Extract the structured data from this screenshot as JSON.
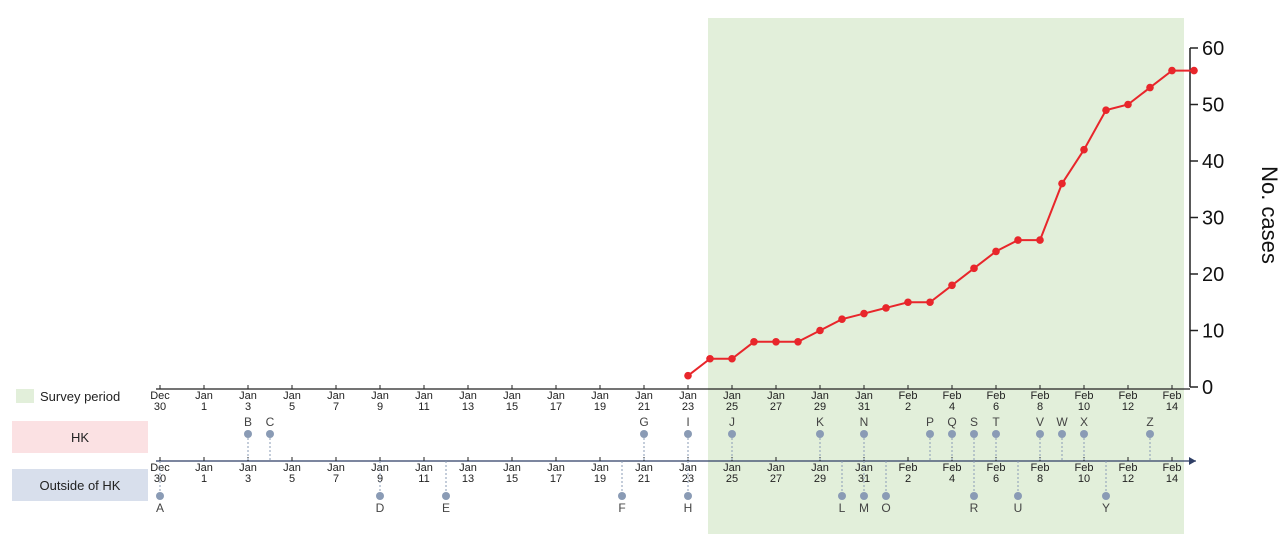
{
  "chart_data": {
    "type": "line",
    "x_axis": {
      "day_range": [
        "Dec 30",
        "Feb 15"
      ],
      "tick_labels": [
        {
          "month": "Dec",
          "day": "30"
        },
        {
          "month": "Jan",
          "day": "1"
        },
        {
          "month": "Jan",
          "day": "3"
        },
        {
          "month": "Jan",
          "day": "5"
        },
        {
          "month": "Jan",
          "day": "7"
        },
        {
          "month": "Jan",
          "day": "9"
        },
        {
          "month": "Jan",
          "day": "11"
        },
        {
          "month": "Jan",
          "day": "13"
        },
        {
          "month": "Jan",
          "day": "15"
        },
        {
          "month": "Jan",
          "day": "17"
        },
        {
          "month": "Jan",
          "day": "19"
        },
        {
          "month": "Jan",
          "day": "21"
        },
        {
          "month": "Jan",
          "day": "23"
        },
        {
          "month": "Jan",
          "day": "25"
        },
        {
          "month": "Jan",
          "day": "27"
        },
        {
          "month": "Jan",
          "day": "29"
        },
        {
          "month": "Jan",
          "day": "31"
        },
        {
          "month": "Feb",
          "day": "2"
        },
        {
          "month": "Feb",
          "day": "4"
        },
        {
          "month": "Feb",
          "day": "6"
        },
        {
          "month": "Feb",
          "day": "8"
        },
        {
          "month": "Feb",
          "day": "10"
        },
        {
          "month": "Feb",
          "day": "12"
        },
        {
          "month": "Feb",
          "day": "14"
        }
      ]
    },
    "y_axis": {
      "label": "No. cases",
      "range": [
        0,
        60
      ],
      "ticks": [
        0,
        10,
        20,
        30,
        40,
        50,
        60
      ]
    },
    "survey_period": {
      "label": "Survey period",
      "start": "Jan 24",
      "end": "Feb 14",
      "color": "#e2efda"
    },
    "series": [
      {
        "color": "#e8262b",
        "points": [
          {
            "date": "Jan 23",
            "y": 2
          },
          {
            "date": "Jan 24",
            "y": 5
          },
          {
            "date": "Jan 25",
            "y": 5
          },
          {
            "date": "Jan 26",
            "y": 8
          },
          {
            "date": "Jan 27",
            "y": 8
          },
          {
            "date": "Jan 28",
            "y": 8
          },
          {
            "date": "Jan 29",
            "y": 10
          },
          {
            "date": "Jan 30",
            "y": 12
          },
          {
            "date": "Jan 31",
            "y": 13
          },
          {
            "date": "Feb 1",
            "y": 14
          },
          {
            "date": "Feb 2",
            "y": 15
          },
          {
            "date": "Feb 3",
            "y": 15
          },
          {
            "date": "Feb 4",
            "y": 18
          },
          {
            "date": "Feb 5",
            "y": 21
          },
          {
            "date": "Feb 6",
            "y": 24
          },
          {
            "date": "Feb 7",
            "y": 26
          },
          {
            "date": "Feb 8",
            "y": 26
          },
          {
            "date": "Feb 9",
            "y": 36
          },
          {
            "date": "Feb 10",
            "y": 42
          },
          {
            "date": "Feb 11",
            "y": 49
          },
          {
            "date": "Feb 12",
            "y": 50
          },
          {
            "date": "Feb 13",
            "y": 53
          },
          {
            "date": "Feb 14",
            "y": 56
          },
          {
            "date": "Feb 15",
            "y": 56
          }
        ]
      }
    ],
    "rows": [
      {
        "key": "hk",
        "label": "HK",
        "color": "#fbe1e3"
      },
      {
        "key": "outside",
        "label": "Outside of HK",
        "color": "#d8dfec"
      }
    ],
    "event_color": "#8a9bb5",
    "hk_events": [
      {
        "label": "B",
        "date": "Jan 3"
      },
      {
        "label": "C",
        "date": "Jan 4"
      },
      {
        "label": "G",
        "date": "Jan 21"
      },
      {
        "label": "I",
        "date": "Jan 23"
      },
      {
        "label": "J",
        "date": "Jan 25"
      },
      {
        "label": "K",
        "date": "Jan 29"
      },
      {
        "label": "N",
        "date": "Jan 31"
      },
      {
        "label": "P",
        "date": "Feb 3"
      },
      {
        "label": "Q",
        "date": "Feb 4"
      },
      {
        "label": "S",
        "date": "Feb 5"
      },
      {
        "label": "T",
        "date": "Feb 6"
      },
      {
        "label": "V",
        "date": "Feb 8"
      },
      {
        "label": "W",
        "date": "Feb 9"
      },
      {
        "label": "X",
        "date": "Feb 10"
      },
      {
        "label": "Z",
        "date": "Feb 13"
      }
    ],
    "outside_events": [
      {
        "label": "A",
        "date": "Dec 30"
      },
      {
        "label": "D",
        "date": "Jan 9"
      },
      {
        "label": "E",
        "date": "Jan 12"
      },
      {
        "label": "F",
        "date": "Jan 20"
      },
      {
        "label": "H",
        "date": "Jan 23"
      },
      {
        "label": "L",
        "date": "Jan 30"
      },
      {
        "label": "M",
        "date": "Jan 31"
      },
      {
        "label": "O",
        "date": "Feb 1"
      },
      {
        "label": "R",
        "date": "Feb 5"
      },
      {
        "label": "U",
        "date": "Feb 7"
      },
      {
        "label": "Y",
        "date": "Feb 11"
      }
    ]
  }
}
